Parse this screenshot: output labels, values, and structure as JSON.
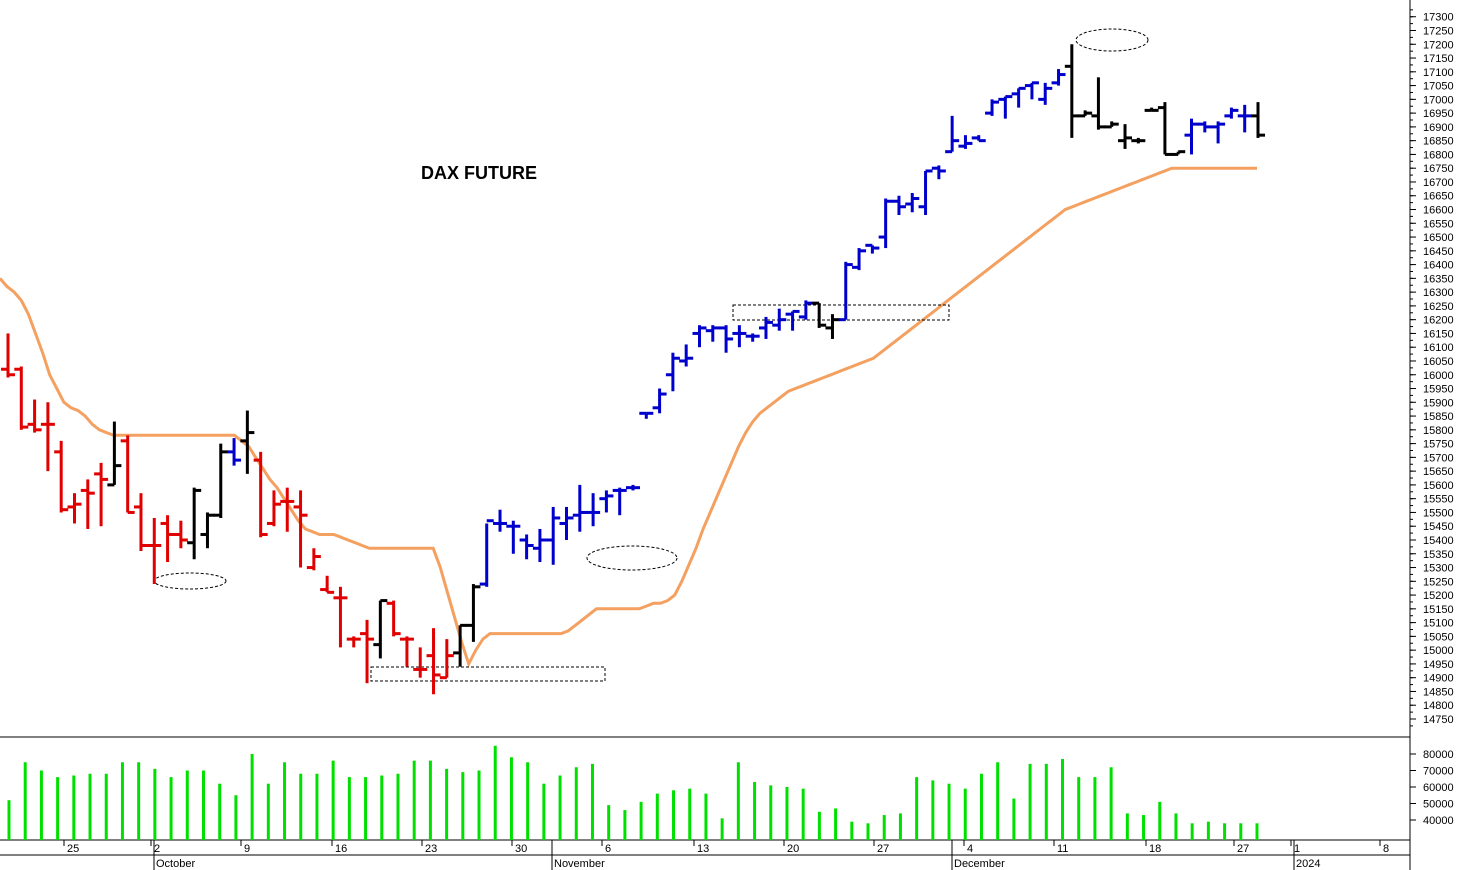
{
  "chart_data": {
    "type": "ohlc_with_volume",
    "title": "DAX FUTURE",
    "price_axis": {
      "range": [
        14700,
        17320
      ],
      "ticks": [
        14750,
        14800,
        14850,
        14900,
        14950,
        15000,
        15050,
        15100,
        15150,
        15200,
        15250,
        15300,
        15350,
        15400,
        15450,
        15500,
        15550,
        15600,
        15650,
        15700,
        15750,
        15800,
        15850,
        15900,
        15950,
        16000,
        16050,
        16100,
        16150,
        16200,
        16250,
        16300,
        16350,
        16400,
        16450,
        16500,
        16550,
        16600,
        16650,
        16700,
        16750,
        16800,
        16850,
        16900,
        16950,
        17000,
        17050,
        17100,
        17150,
        17200,
        17250,
        17300
      ]
    },
    "volume_axis": {
      "range": [
        33000,
        87000
      ],
      "ticks": [
        40000,
        50000,
        60000,
        70000,
        80000
      ],
      "bar_color": "#00e000"
    },
    "x_axis": {
      "day_labels": [
        "25",
        "2",
        "9",
        "16",
        "23",
        "30",
        "6",
        "13",
        "20",
        "27",
        "4",
        "11",
        "18",
        "27",
        "1",
        "8"
      ],
      "month_labels": [
        "October",
        "November",
        "December",
        "2024"
      ]
    },
    "bar_colors": {
      "red": "#e00000",
      "black": "#000000",
      "blue": "#0000cc"
    },
    "trend_line": {
      "color": "#f4a060"
    },
    "bars": [
      {
        "o": 16020,
        "h": 16150,
        "l": 15990,
        "c": 16000,
        "col": "red"
      },
      {
        "o": 16020,
        "h": 16030,
        "l": 15800,
        "c": 15810,
        "col": "red"
      },
      {
        "o": 15820,
        "h": 15910,
        "l": 15790,
        "c": 15800,
        "col": "red"
      },
      {
        "o": 15820,
        "h": 15900,
        "l": 15650,
        "c": 15820,
        "col": "red"
      },
      {
        "o": 15720,
        "h": 15760,
        "l": 15500,
        "c": 15510,
        "col": "red"
      },
      {
        "o": 15520,
        "h": 15570,
        "l": 15460,
        "c": 15530,
        "col": "red"
      },
      {
        "o": 15580,
        "h": 15620,
        "l": 15440,
        "c": 15570,
        "col": "red"
      },
      {
        "o": 15640,
        "h": 15680,
        "l": 15450,
        "c": 15620,
        "col": "red"
      },
      {
        "o": 15600,
        "h": 15830,
        "l": 15600,
        "c": 15670,
        "col": "black"
      },
      {
        "o": 15760,
        "h": 15780,
        "l": 15500,
        "c": 15500,
        "col": "red"
      },
      {
        "o": 15520,
        "h": 15570,
        "l": 15360,
        "c": 15380,
        "col": "red"
      },
      {
        "o": 15380,
        "h": 15480,
        "l": 15240,
        "c": 15380,
        "col": "red"
      },
      {
        "o": 15460,
        "h": 15490,
        "l": 15320,
        "c": 15420,
        "col": "red"
      },
      {
        "o": 15420,
        "h": 15470,
        "l": 15370,
        "c": 15400,
        "col": "red"
      },
      {
        "o": 15390,
        "h": 15590,
        "l": 15330,
        "c": 15580,
        "col": "black"
      },
      {
        "o": 15420,
        "h": 15500,
        "l": 15370,
        "c": 15490,
        "col": "black"
      },
      {
        "o": 15490,
        "h": 15750,
        "l": 15480,
        "c": 15720,
        "col": "black"
      },
      {
        "o": 15720,
        "h": 15770,
        "l": 15670,
        "c": 15690,
        "col": "blue"
      },
      {
        "o": 15760,
        "h": 15870,
        "l": 15640,
        "c": 15790,
        "col": "black"
      },
      {
        "o": 15690,
        "h": 15720,
        "l": 15410,
        "c": 15420,
        "col": "red"
      },
      {
        "o": 15460,
        "h": 15580,
        "l": 15450,
        "c": 15530,
        "col": "red"
      },
      {
        "o": 15540,
        "h": 15590,
        "l": 15430,
        "c": 15540,
        "col": "red"
      },
      {
        "o": 15520,
        "h": 15580,
        "l": 15300,
        "c": 15490,
        "col": "red"
      },
      {
        "o": 15300,
        "h": 15370,
        "l": 15290,
        "c": 15340,
        "col": "red"
      },
      {
        "o": 15220,
        "h": 15270,
        "l": 15210,
        "c": 15210,
        "col": "red"
      },
      {
        "o": 15190,
        "h": 15230,
        "l": 15010,
        "c": 15190,
        "col": "red"
      },
      {
        "o": 15040,
        "h": 15050,
        "l": 15010,
        "c": 15040,
        "col": "red"
      },
      {
        "o": 15060,
        "h": 15110,
        "l": 14880,
        "c": 15040,
        "col": "red"
      },
      {
        "o": 15020,
        "h": 15180,
        "l": 14970,
        "c": 15180,
        "col": "black"
      },
      {
        "o": 15170,
        "h": 15180,
        "l": 15050,
        "c": 15060,
        "col": "red"
      },
      {
        "o": 15040,
        "h": 15050,
        "l": 14940,
        "c": 15040,
        "col": "red"
      },
      {
        "o": 14930,
        "h": 15010,
        "l": 14900,
        "c": 14930,
        "col": "red"
      },
      {
        "o": 14980,
        "h": 15080,
        "l": 14840,
        "c": 14910,
        "col": "red"
      },
      {
        "o": 14900,
        "h": 15040,
        "l": 14900,
        "c": 14980,
        "col": "red"
      },
      {
        "o": 14990,
        "h": 15090,
        "l": 14940,
        "c": 15090,
        "col": "black"
      },
      {
        "o": 15090,
        "h": 15240,
        "l": 15030,
        "c": 15230,
        "col": "black"
      },
      {
        "o": 15240,
        "h": 15460,
        "l": 15230,
        "c": 15470,
        "col": "blue"
      },
      {
        "o": 15460,
        "h": 15510,
        "l": 15430,
        "c": 15460,
        "col": "blue"
      },
      {
        "o": 15450,
        "h": 15470,
        "l": 15350,
        "c": 15450,
        "col": "blue"
      },
      {
        "o": 15400,
        "h": 15420,
        "l": 15330,
        "c": 15380,
        "col": "blue"
      },
      {
        "o": 15370,
        "h": 15440,
        "l": 15320,
        "c": 15400,
        "col": "blue"
      },
      {
        "o": 15400,
        "h": 15520,
        "l": 15310,
        "c": 15480,
        "col": "blue"
      },
      {
        "o": 15460,
        "h": 15520,
        "l": 15400,
        "c": 15480,
        "col": "blue"
      },
      {
        "o": 15490,
        "h": 15600,
        "l": 15430,
        "c": 15500,
        "col": "blue"
      },
      {
        "o": 15500,
        "h": 15570,
        "l": 15450,
        "c": 15500,
        "col": "blue"
      },
      {
        "o": 15550,
        "h": 15580,
        "l": 15500,
        "c": 15560,
        "col": "blue"
      },
      {
        "o": 15580,
        "h": 15590,
        "l": 15490,
        "c": 15580,
        "col": "blue"
      },
      {
        "o": 15590,
        "h": 15600,
        "l": 15580,
        "c": 15590,
        "col": "blue"
      },
      {
        "o": 15860,
        "h": 15860,
        "l": 15840,
        "c": 15860,
        "col": "blue"
      },
      {
        "o": 15880,
        "h": 15950,
        "l": 15860,
        "c": 15930,
        "col": "blue"
      },
      {
        "o": 16000,
        "h": 16080,
        "l": 15940,
        "c": 16060,
        "col": "blue"
      },
      {
        "o": 16050,
        "h": 16110,
        "l": 16030,
        "c": 16060,
        "col": "blue"
      },
      {
        "o": 16150,
        "h": 16180,
        "l": 16100,
        "c": 16170,
        "col": "blue"
      },
      {
        "o": 16160,
        "h": 16180,
        "l": 16120,
        "c": 16170,
        "col": "blue"
      },
      {
        "o": 16170,
        "h": 16180,
        "l": 16080,
        "c": 16130,
        "col": "blue"
      },
      {
        "o": 16150,
        "h": 16180,
        "l": 16100,
        "c": 16150,
        "col": "blue"
      },
      {
        "o": 16140,
        "h": 16150,
        "l": 16120,
        "c": 16140,
        "col": "blue"
      },
      {
        "o": 16170,
        "h": 16210,
        "l": 16130,
        "c": 16190,
        "col": "blue"
      },
      {
        "o": 16180,
        "h": 16240,
        "l": 16160,
        "c": 16200,
        "col": "blue"
      },
      {
        "o": 16220,
        "h": 16230,
        "l": 16160,
        "c": 16230,
        "col": "blue"
      },
      {
        "o": 16210,
        "h": 16270,
        "l": 16200,
        "c": 16260,
        "col": "blue"
      },
      {
        "o": 16260,
        "h": 16260,
        "l": 16170,
        "c": 16180,
        "col": "black"
      },
      {
        "o": 16170,
        "h": 16220,
        "l": 16130,
        "c": 16200,
        "col": "black"
      },
      {
        "o": 16200,
        "h": 16410,
        "l": 16200,
        "c": 16400,
        "col": "blue"
      },
      {
        "o": 16390,
        "h": 16460,
        "l": 16380,
        "c": 16450,
        "col": "blue"
      },
      {
        "o": 16470,
        "h": 16470,
        "l": 16440,
        "c": 16460,
        "col": "blue"
      },
      {
        "o": 16500,
        "h": 16640,
        "l": 16460,
        "c": 16630,
        "col": "blue"
      },
      {
        "o": 16630,
        "h": 16650,
        "l": 16580,
        "c": 16610,
        "col": "blue"
      },
      {
        "o": 16620,
        "h": 16660,
        "l": 16590,
        "c": 16640,
        "col": "blue"
      },
      {
        "o": 16610,
        "h": 16740,
        "l": 16580,
        "c": 16740,
        "col": "blue"
      },
      {
        "o": 16750,
        "h": 16760,
        "l": 16710,
        "c": 16740,
        "col": "blue"
      },
      {
        "o": 16810,
        "h": 16940,
        "l": 16810,
        "c": 16850,
        "col": "blue"
      },
      {
        "o": 16830,
        "h": 16870,
        "l": 16820,
        "c": 16840,
        "col": "blue"
      },
      {
        "o": 16860,
        "h": 16870,
        "l": 16850,
        "c": 16850,
        "col": "blue"
      },
      {
        "o": 16950,
        "h": 17000,
        "l": 16940,
        "c": 16990,
        "col": "blue"
      },
      {
        "o": 17000,
        "h": 17010,
        "l": 16930,
        "c": 17010,
        "col": "blue"
      },
      {
        "o": 17020,
        "h": 17040,
        "l": 16970,
        "c": 17040,
        "col": "blue"
      },
      {
        "o": 17050,
        "h": 17060,
        "l": 17000,
        "c": 17060,
        "col": "blue"
      },
      {
        "o": 17000,
        "h": 17060,
        "l": 16980,
        "c": 17040,
        "col": "blue"
      },
      {
        "o": 17060,
        "h": 17110,
        "l": 17050,
        "c": 17090,
        "col": "blue"
      },
      {
        "o": 17120,
        "h": 17200,
        "l": 16860,
        "c": 16940,
        "col": "black"
      },
      {
        "o": 16940,
        "h": 16960,
        "l": 16940,
        "c": 16950,
        "col": "black"
      },
      {
        "o": 16940,
        "h": 17080,
        "l": 16890,
        "c": 16900,
        "col": "black"
      },
      {
        "o": 16900,
        "h": 16920,
        "l": 16900,
        "c": 16910,
        "col": "black"
      },
      {
        "o": 16850,
        "h": 16910,
        "l": 16820,
        "c": 16860,
        "col": "black"
      },
      {
        "o": 16850,
        "h": 16860,
        "l": 16840,
        "c": 16850,
        "col": "black"
      },
      {
        "o": 16960,
        "h": 16970,
        "l": 16960,
        "c": 16960,
        "col": "black"
      },
      {
        "o": 16970,
        "h": 16990,
        "l": 16800,
        "c": 16800,
        "col": "black"
      },
      {
        "o": 16800,
        "h": 16810,
        "l": 16800,
        "c": 16810,
        "col": "black"
      },
      {
        "o": 16870,
        "h": 16930,
        "l": 16800,
        "c": 16910,
        "col": "blue"
      },
      {
        "o": 16910,
        "h": 16920,
        "l": 16880,
        "c": 16900,
        "col": "blue"
      },
      {
        "o": 16900,
        "h": 16920,
        "l": 16840,
        "c": 16910,
        "col": "blue"
      },
      {
        "o": 16940,
        "h": 16970,
        "l": 16930,
        "c": 16960,
        "col": "blue"
      },
      {
        "o": 16940,
        "h": 16980,
        "l": 16880,
        "c": 16940,
        "col": "blue"
      },
      {
        "o": 16940,
        "h": 16990,
        "l": 16860,
        "c": 16870,
        "col": "black"
      }
    ],
    "trend": [
      16350,
      16320,
      16300,
      16270,
      16220,
      16150,
      16080,
      16000,
      15950,
      15900,
      15880,
      15870,
      15850,
      15820,
      15800,
      15790,
      15780,
      15780,
      15780,
      15780,
      15780,
      15780,
      15780,
      15780,
      15780,
      15780,
      15780,
      15780,
      15780,
      15780,
      15780,
      15780,
      15780,
      15780,
      15760,
      15740,
      15700,
      15660,
      15620,
      15590,
      15550,
      15510,
      15470,
      15440,
      15430,
      15420,
      15420,
      15420,
      15410,
      15400,
      15390,
      15380,
      15370,
      15370,
      15370,
      15370,
      15370,
      15370,
      15370,
      15370,
      15370,
      15370,
      15300,
      15210,
      15120,
      15030,
      14950,
      15000,
      15040,
      15060,
      15060,
      15060,
      15060,
      15060,
      15060,
      15060,
      15060,
      15060,
      15060,
      15060,
      15070,
      15090,
      15110,
      15130,
      15150,
      15150,
      15150,
      15150,
      15150,
      15150,
      15150,
      15160,
      15170,
      15170,
      15180,
      15200,
      15250,
      15310,
      15370,
      15440,
      15500,
      15560,
      15620,
      15680,
      15740,
      15790,
      15830,
      15860,
      15880,
      15900,
      15920,
      15940,
      15950,
      15960,
      15970,
      15980,
      15990,
      16000,
      16010,
      16020,
      16030,
      16040,
      16050,
      16060,
      16080,
      16100,
      16120,
      16140,
      16160,
      16180,
      16200,
      16220,
      16240,
      16260,
      16280,
      16300,
      16320,
      16340,
      16360,
      16380,
      16400,
      16420,
      16440,
      16460,
      16480,
      16500,
      16520,
      16540,
      16560,
      16580,
      16600,
      16610,
      16620,
      16630,
      16640,
      16650,
      16660,
      16670,
      16680,
      16690,
      16700,
      16710,
      16720,
      16730,
      16740,
      16750,
      16750,
      16750,
      16750,
      16750,
      16750,
      16750,
      16750,
      16750,
      16750,
      16750,
      16750,
      16750
    ],
    "volume": [
      52000,
      75000,
      70000,
      66000,
      67000,
      68000,
      68000,
      75000,
      75000,
      71000,
      66000,
      70000,
      70000,
      62000,
      55000,
      80000,
      62000,
      75000,
      68000,
      68000,
      76000,
      66000,
      66000,
      67000,
      68000,
      76000,
      76000,
      71000,
      69000,
      70000,
      85000,
      78000,
      75000,
      62000,
      67000,
      72000,
      74000,
      49000,
      46000,
      51000,
      56000,
      58000,
      59000,
      56000,
      41000,
      75000,
      63000,
      61000,
      60000,
      59000,
      45000,
      47000,
      39000,
      38000,
      43000,
      44000,
      66000,
      64000,
      62000,
      59000,
      68000,
      75000,
      53000,
      74000,
      74000,
      77000,
      66000,
      66000,
      72000,
      44000,
      43000,
      51000,
      44000,
      38000,
      39000,
      38000,
      38000,
      38000
    ]
  }
}
